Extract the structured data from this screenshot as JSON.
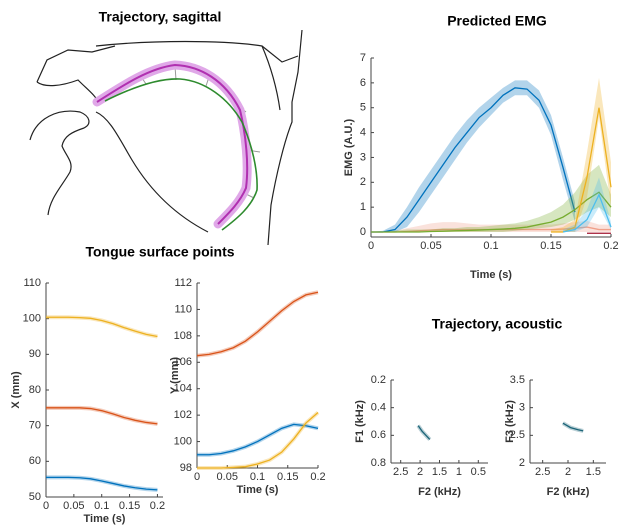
{
  "chart_data": [
    {
      "type": "diagram",
      "title": "Trajectory, sagittal"
    },
    {
      "type": "line",
      "title": "Predicted EMG",
      "xlabel": "Time (s)",
      "ylabel": "EMG (A.U.)",
      "x": [
        0,
        0.01,
        0.02,
        0.03,
        0.04,
        0.05,
        0.06,
        0.07,
        0.08,
        0.09,
        0.1,
        0.11,
        0.12,
        0.13,
        0.14,
        0.15,
        0.16,
        0.17,
        0.18,
        0.19,
        0.2
      ],
      "xlim": [
        0,
        0.2
      ],
      "xticks": [
        0,
        0.05,
        0.1,
        0.15,
        0.2
      ],
      "ylim": [
        -0.2,
        7
      ],
      "yticks": [
        0,
        1,
        2,
        3,
        4,
        5,
        6,
        7
      ],
      "series": [
        {
          "color": "#f0a08a",
          "values": [
            0,
            0,
            0,
            0.02,
            0.05,
            0.08,
            0.1,
            0.1,
            0.1,
            0.1,
            0.1,
            0.1,
            0.1,
            0.1,
            0.1,
            0.1,
            0.12,
            0.15,
            0.2,
            0.1,
            0.1
          ],
          "lower": [
            0,
            0,
            0,
            0,
            0,
            0,
            0,
            0,
            0,
            0,
            0,
            0,
            0,
            0,
            0,
            0,
            0,
            0,
            0,
            0,
            0
          ],
          "upper": [
            0,
            0,
            0.05,
            0.15,
            0.25,
            0.35,
            0.4,
            0.4,
            0.35,
            0.3,
            0.3,
            0.3,
            0.3,
            0.3,
            0.3,
            0.3,
            0.35,
            0.4,
            0.45,
            0.3,
            0.3
          ]
        },
        {
          "color": "#0072bd",
          "values": [
            0,
            0,
            0.1,
            0.6,
            1.3,
            2.0,
            2.7,
            3.4,
            4.0,
            4.6,
            5.0,
            5.5,
            5.8,
            5.75,
            5.3,
            4.3,
            2.6,
            0.8,
            null,
            null,
            null
          ],
          "lower": [
            0,
            0,
            0,
            0.2,
            0.8,
            1.5,
            2.2,
            2.9,
            3.6,
            4.2,
            4.7,
            5.2,
            5.5,
            5.5,
            5.0,
            3.9,
            2.1,
            0.4,
            null,
            null,
            null
          ],
          "upper": [
            0,
            0.05,
            0.3,
            1.0,
            1.8,
            2.5,
            3.2,
            3.9,
            4.5,
            5.0,
            5.4,
            5.8,
            6.1,
            6.1,
            5.7,
            4.7,
            3.0,
            1.2,
            null,
            null,
            null
          ]
        },
        {
          "color": "#77ac30",
          "values": [
            0,
            0,
            0,
            0,
            0,
            0.02,
            0.03,
            0.05,
            0.06,
            0.08,
            0.1,
            0.12,
            0.15,
            0.2,
            0.3,
            0.4,
            0.6,
            0.9,
            1.3,
            1.6,
            1.0
          ],
          "lower": [
            0,
            0,
            0,
            0,
            0,
            0,
            0,
            0,
            0,
            0,
            0,
            0,
            0.05,
            0.1,
            0.15,
            0.2,
            0.3,
            0.5,
            0.8,
            1.0,
            0.6
          ],
          "upper": [
            0,
            0,
            0.05,
            0.1,
            0.1,
            0.1,
            0.15,
            0.15,
            0.2,
            0.2,
            0.25,
            0.3,
            0.35,
            0.45,
            0.6,
            0.8,
            1.1,
            1.6,
            2.3,
            2.7,
            1.5
          ]
        },
        {
          "color": "#edb120",
          "values": [
            null,
            null,
            null,
            null,
            null,
            null,
            null,
            null,
            null,
            null,
            null,
            null,
            null,
            null,
            null,
            0,
            0,
            0.2,
            2.2,
            5.0,
            1.8
          ],
          "lower": [
            null,
            null,
            null,
            null,
            null,
            null,
            null,
            null,
            null,
            null,
            null,
            null,
            null,
            null,
            null,
            0,
            0,
            0,
            1.4,
            4.6,
            1.0
          ],
          "upper": [
            null,
            null,
            null,
            null,
            null,
            null,
            null,
            null,
            null,
            null,
            null,
            null,
            null,
            null,
            null,
            0.1,
            0.2,
            0.5,
            3.2,
            6.2,
            2.8
          ]
        },
        {
          "color": "#4dbeee",
          "values": [
            null,
            null,
            null,
            null,
            null,
            null,
            null,
            null,
            null,
            null,
            null,
            null,
            null,
            null,
            null,
            null,
            0,
            0.1,
            0.5,
            1.5,
            0.2
          ],
          "lower": [
            null,
            null,
            null,
            null,
            null,
            null,
            null,
            null,
            null,
            null,
            null,
            null,
            null,
            null,
            null,
            null,
            0,
            0,
            0.2,
            1.0,
            0.1
          ],
          "upper": [
            null,
            null,
            null,
            null,
            null,
            null,
            null,
            null,
            null,
            null,
            null,
            null,
            null,
            null,
            null,
            null,
            0.1,
            0.3,
            0.9,
            2.2,
            0.4
          ]
        },
        {
          "color": "#a2142f",
          "values": [
            null,
            null,
            null,
            null,
            null,
            null,
            null,
            null,
            null,
            null,
            null,
            null,
            null,
            null,
            null,
            null,
            null,
            null,
            -0.05,
            -0.05,
            -0.05
          ]
        }
      ]
    },
    {
      "type": "line",
      "title": "Tongue surface points",
      "xlabel": "Time (s)",
      "ylabel": "X (mm)",
      "x": [
        0,
        0.02,
        0.04,
        0.06,
        0.08,
        0.1,
        0.12,
        0.14,
        0.16,
        0.18,
        0.2
      ],
      "xlim": [
        0,
        0.21
      ],
      "xticks": [
        0,
        0.05,
        0.1,
        0.15,
        0.2
      ],
      "ylim": [
        50,
        110
      ],
      "yticks": [
        50,
        60,
        70,
        80,
        90,
        100,
        110
      ],
      "series": [
        {
          "color": "#edb120",
          "values": [
            100.4,
            100.4,
            100.4,
            100.3,
            100.1,
            99.5,
            98.6,
            97.5,
            96.5,
            95.6,
            95.0
          ]
        },
        {
          "color": "#d95319",
          "values": [
            75,
            75,
            75,
            75,
            74.8,
            74.2,
            73.3,
            72.3,
            71.5,
            70.9,
            70.5
          ]
        },
        {
          "color": "#0072bd",
          "values": [
            55.5,
            55.5,
            55.5,
            55.4,
            55.1,
            54.5,
            53.8,
            53.1,
            52.6,
            52.2,
            52.0
          ]
        }
      ]
    },
    {
      "type": "line",
      "xlabel": "Time (s)",
      "ylabel": "Y (mm)",
      "x": [
        0,
        0.02,
        0.04,
        0.06,
        0.08,
        0.1,
        0.12,
        0.14,
        0.16,
        0.18,
        0.2
      ],
      "xlim": [
        0,
        0.2
      ],
      "xticks": [
        0,
        0.05,
        0.1,
        0.15,
        0.2
      ],
      "ylim": [
        98,
        112
      ],
      "yticks": [
        98,
        100,
        102,
        104,
        106,
        108,
        110,
        112
      ],
      "series": [
        {
          "color": "#d95319",
          "values": [
            106.5,
            106.6,
            106.8,
            107.1,
            107.6,
            108.3,
            109.1,
            109.9,
            110.6,
            111.1,
            111.3
          ]
        },
        {
          "color": "#0072bd",
          "values": [
            99.0,
            99.0,
            99.1,
            99.3,
            99.6,
            100.0,
            100.5,
            101.0,
            101.3,
            101.2,
            101.0
          ]
        },
        {
          "color": "#edb120",
          "values": [
            98.0,
            98.0,
            98.0,
            98.05,
            98.1,
            98.3,
            98.6,
            99.2,
            100.2,
            101.4,
            102.2
          ]
        }
      ]
    },
    {
      "type": "line",
      "title": "Trajectory, acoustic",
      "xlabel": "F2 (kHz)",
      "ylabel": "F1 (kHz)",
      "x": [
        2.05,
        1.95,
        1.85,
        1.75
      ],
      "xlim": [
        2.75,
        0.25
      ],
      "xticks": [
        2.5,
        2,
        1.5,
        1,
        0.5
      ],
      "ylim": [
        0.8,
        0.2
      ],
      "yticks": [
        0.2,
        0.4,
        0.6,
        0.8
      ],
      "series": [
        {
          "color": "#1b6478",
          "values": [
            0.53,
            0.57,
            0.6,
            0.63
          ]
        }
      ]
    },
    {
      "type": "line",
      "xlabel": "F2 (kHz)",
      "ylabel": "F3 (kHz)",
      "x": [
        2.1,
        1.95,
        1.8,
        1.7
      ],
      "xlim": [
        2.75,
        1.25
      ],
      "xticks": [
        2.5,
        2,
        1.5
      ],
      "ylim": [
        2,
        3.5
      ],
      "yticks": [
        2,
        2.5,
        3,
        3.5
      ],
      "series": [
        {
          "color": "#1b6478",
          "values": [
            2.72,
            2.64,
            2.6,
            2.58
          ]
        }
      ]
    }
  ]
}
